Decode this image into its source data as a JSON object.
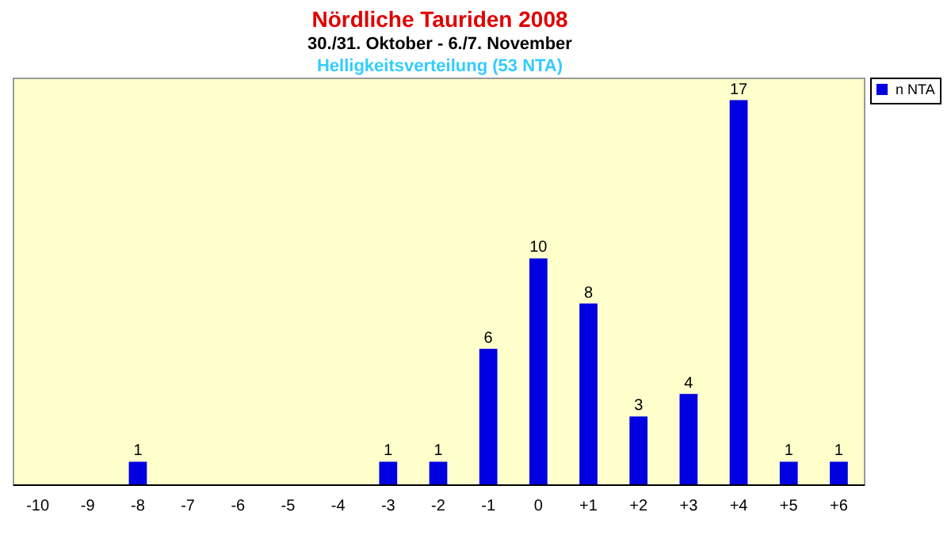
{
  "chart_data": {
    "type": "bar",
    "title": "Nördliche Tauriden 2008",
    "subtitle": "30./31. Oktober - 6./7. November",
    "annotations": [
      "Helligkeitsverteilung (53 NTA)"
    ],
    "categories": [
      "-10",
      "-9",
      "-8",
      "-7",
      "-6",
      "-5",
      "-4",
      "-3",
      "-2",
      "-1",
      "0",
      "+1",
      "+2",
      "+3",
      "+4",
      "+5",
      "+6"
    ],
    "series": [
      {
        "name": "n NTA",
        "color": "#0000e0",
        "values": [
          0,
          0,
          1,
          0,
          0,
          0,
          0,
          1,
          1,
          6,
          10,
          8,
          3,
          4,
          17,
          1,
          1
        ],
        "value_labels": [
          null,
          null,
          "1",
          null,
          null,
          null,
          null,
          "1",
          "1",
          "6",
          "10",
          "8",
          "3",
          "4",
          "17",
          "1",
          "1"
        ]
      }
    ],
    "legend": "right",
    "grid": false
  }
}
